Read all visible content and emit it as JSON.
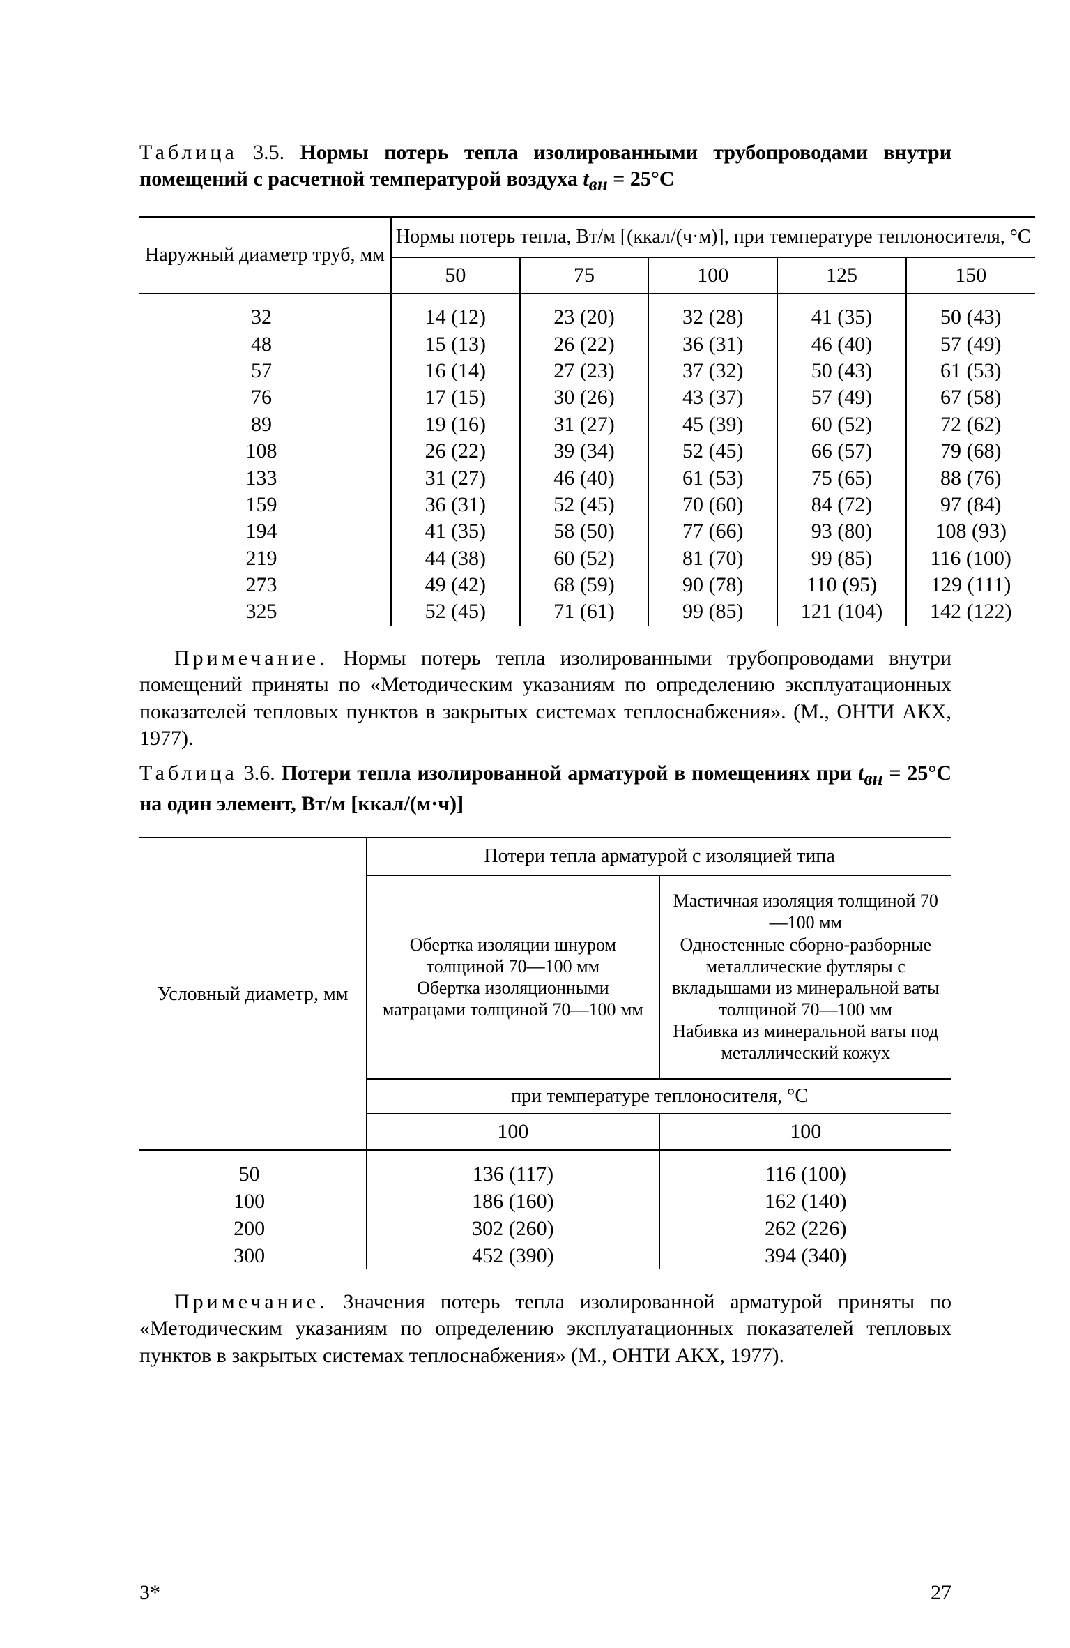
{
  "page": {
    "sig_left": "3*",
    "number": "27",
    "colors": {
      "text": "#000000",
      "background": "#ffffff",
      "rule": "#000000"
    }
  },
  "t35": {
    "caption_label": "Таблица",
    "caption_num": "3.5.",
    "caption_bold": "Нормы потерь тепла изолированными трубопроводами внутри помещений с расчетной температурой воздуха ",
    "caption_var_pre": "t",
    "caption_var_sub": "вн",
    "caption_var_post": " = 25°C",
    "head_rowlabel": "Наружный диаметр труб, мм",
    "head_top": "Нормы потерь тепла, Вт/м [(ккал/(ч·м)], при температуре теплоносителя, °C",
    "cols": [
      "50",
      "75",
      "100",
      "125",
      "150"
    ],
    "rows": [
      {
        "d": "32",
        "c": [
          "14 (12)",
          "23 (20)",
          "32 (28)",
          "41 (35)",
          "50 (43)"
        ]
      },
      {
        "d": "48",
        "c": [
          "15 (13)",
          "26 (22)",
          "36 (31)",
          "46 (40)",
          "57 (49)"
        ]
      },
      {
        "d": "57",
        "c": [
          "16 (14)",
          "27 (23)",
          "37 (32)",
          "50 (43)",
          "61 (53)"
        ]
      },
      {
        "d": "76",
        "c": [
          "17 (15)",
          "30 (26)",
          "43 (37)",
          "57 (49)",
          "67 (58)"
        ]
      },
      {
        "d": "89",
        "c": [
          "19 (16)",
          "31 (27)",
          "45 (39)",
          "60 (52)",
          "72 (62)"
        ]
      },
      {
        "d": "108",
        "c": [
          "26 (22)",
          "39 (34)",
          "52 (45)",
          "66 (57)",
          "79 (68)"
        ]
      },
      {
        "d": "133",
        "c": [
          "31 (27)",
          "46 (40)",
          "61 (53)",
          "75 (65)",
          "88 (76)"
        ]
      },
      {
        "d": "159",
        "c": [
          "36 (31)",
          "52 (45)",
          "70 (60)",
          "84 (72)",
          "97 (84)"
        ]
      },
      {
        "d": "194",
        "c": [
          "41 (35)",
          "58 (50)",
          "77 (66)",
          "93 (80)",
          "108 (93)"
        ]
      },
      {
        "d": "219",
        "c": [
          "44 (38)",
          "60 (52)",
          "81 (70)",
          "99 (85)",
          "116 (100)"
        ]
      },
      {
        "d": "273",
        "c": [
          "49 (42)",
          "68 (59)",
          "90 (78)",
          "110 (95)",
          "129 (111)"
        ]
      },
      {
        "d": "325",
        "c": [
          "52 (45)",
          "71 (61)",
          "99 (85)",
          "121 (104)",
          "142 (122)"
        ]
      }
    ],
    "note_label": "Примечание.",
    "note_text": " Нормы потерь тепла изолированными трубопроводами внутри помещений приняты по «Методическим указаниям по определению эксплуатационных показателей тепловых пунктов в закрытых системах теплоснабжения». (М., ОНТИ АКХ, 1977)."
  },
  "t36": {
    "caption_label": "Таблица",
    "caption_num": "3.6.",
    "caption_bold_pre": "Потери тепла изолированной арматурой в помещениях при ",
    "caption_var_pre": "t",
    "caption_var_sub": "вн",
    "caption_bold_post": " = 25°C на один элемент, Вт/м [ккал/(м·ч)]",
    "head_rowlabel": "Условный диаметр, мм",
    "head_top": "Потери тепла арматурой с изоляцией типа",
    "desc_a": "Обертка изоляции шнуром толщиной 70—100 мм\nОбертка изоляционными матрацами толщиной 70—100 мм",
    "desc_b": "Мастичная изоляция толщиной 70—100 мм\nОдностенные сборно-разборные металлические футляры с вкладышами из минеральной ваты толщиной 70—100 мм\nНабивка из минеральной ваты под металлический кожух",
    "temp_label": "при температуре теплоносителя, °C",
    "cols": [
      "100",
      "100"
    ],
    "rows": [
      {
        "d": "50",
        "c": [
          "136 (117)",
          "116 (100)"
        ]
      },
      {
        "d": "100",
        "c": [
          "186 (160)",
          "162 (140)"
        ]
      },
      {
        "d": "200",
        "c": [
          "302 (260)",
          "262 (226)"
        ]
      },
      {
        "d": "300",
        "c": [
          "452 (390)",
          "394 (340)"
        ]
      }
    ],
    "note_label": "Примечание.",
    "note_text": " Значения потерь тепла изолированной арматурой приняты по «Методическим указаниям по определению эксплуатационных показателей тепловых пунктов в закрытых системах теплоснабжения» (М., ОНТИ АКХ, 1977)."
  }
}
